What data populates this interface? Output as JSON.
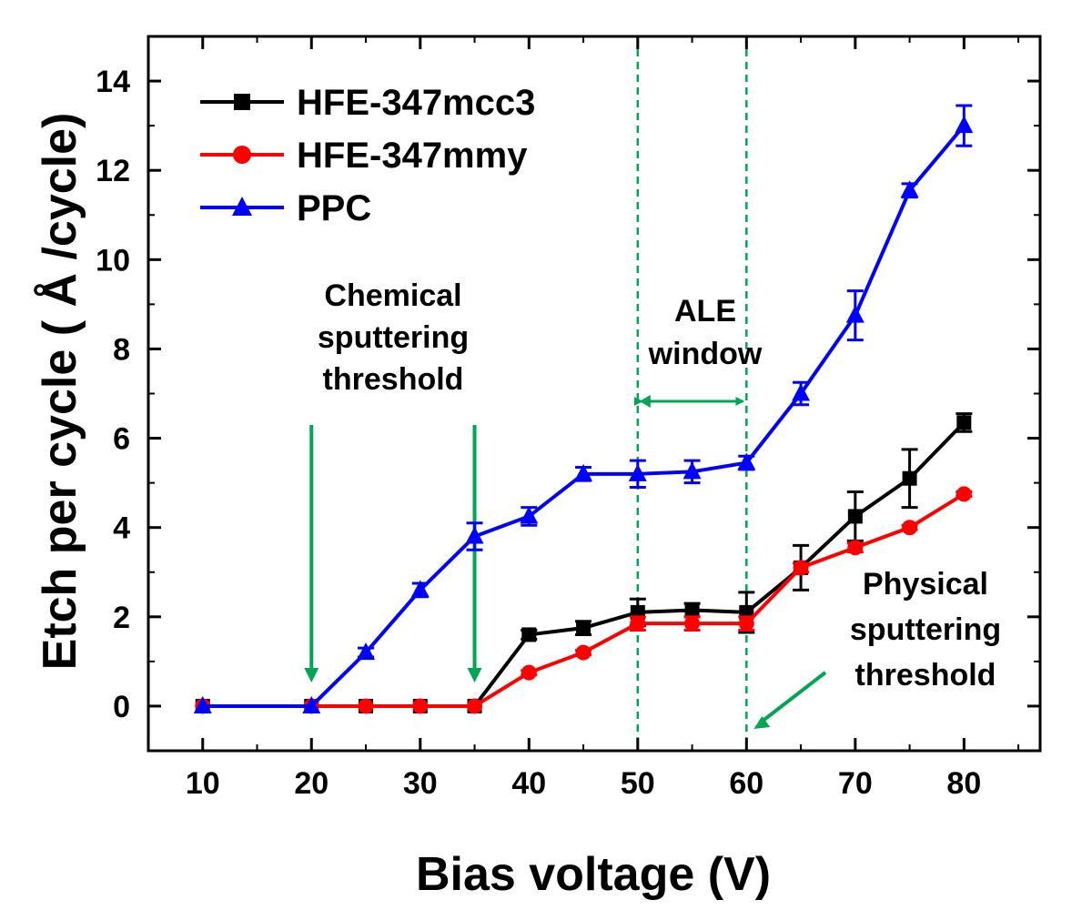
{
  "chart_data": {
    "type": "line",
    "title": "",
    "xlabel": "Bias voltage (V)",
    "ylabel": "Etch per cycle ( Å /cycle)",
    "xlim": [
      5,
      87
    ],
    "ylim": [
      -1,
      15
    ],
    "x_ticks": [
      10,
      20,
      30,
      40,
      50,
      60,
      70,
      80
    ],
    "y_ticks": [
      0,
      2,
      4,
      6,
      8,
      10,
      12,
      14
    ],
    "x_tick_labels": [
      "10",
      "20",
      "30",
      "40",
      "50",
      "60",
      "70",
      "80"
    ],
    "y_tick_labels": [
      "0",
      "2",
      "4",
      "6",
      "8",
      "10",
      "12",
      "14"
    ],
    "legend_position": "top-left",
    "series": [
      {
        "name": "HFE-347mcc3",
        "color": "#000000",
        "marker": "square",
        "x": [
          10,
          20,
          25,
          30,
          35,
          40,
          45,
          50,
          55,
          60,
          65,
          70,
          75,
          80
        ],
        "values": [
          0,
          0,
          0,
          0,
          0,
          1.6,
          1.75,
          2.1,
          2.15,
          2.1,
          3.1,
          4.25,
          5.1,
          6.35
        ],
        "errors": [
          0,
          0,
          0,
          0,
          0,
          0.1,
          0.15,
          0.3,
          0.15,
          0.45,
          0.5,
          0.55,
          0.65,
          0.2
        ]
      },
      {
        "name": "HFE-347mmy",
        "color": "#ff0000",
        "marker": "circle",
        "x": [
          10,
          20,
          25,
          30,
          35,
          40,
          45,
          50,
          55,
          60,
          65,
          70,
          75,
          80
        ],
        "values": [
          0,
          0,
          0,
          0,
          0,
          0.75,
          1.2,
          1.85,
          1.85,
          1.85,
          3.1,
          3.55,
          4.0,
          4.75
        ],
        "errors": [
          0,
          0,
          0,
          0,
          0,
          0.05,
          0.05,
          0.15,
          0.15,
          0.15,
          0.1,
          0.1,
          0.05,
          0.05
        ]
      },
      {
        "name": "PPC",
        "color": "#0000ff",
        "marker": "triangle",
        "x": [
          10,
          20,
          25,
          30,
          35,
          40,
          45,
          50,
          55,
          60,
          65,
          70,
          75,
          80
        ],
        "values": [
          0,
          0,
          1.2,
          2.6,
          3.8,
          4.25,
          5.2,
          5.2,
          5.25,
          5.45,
          7.0,
          8.75,
          11.55,
          13.0
        ],
        "errors": [
          0,
          0,
          0.1,
          0.15,
          0.3,
          0.2,
          0.15,
          0.3,
          0.25,
          0.15,
          0.25,
          0.55,
          0.15,
          0.45
        ]
      }
    ],
    "annotations": {
      "ale_window": {
        "lines": [
          "ALE",
          "window"
        ],
        "x_from": 50,
        "x_to": 60,
        "color": "#00a651"
      },
      "chemical": {
        "lines": [
          "Chemical",
          "sputtering",
          "threshold"
        ],
        "arrows_at_x": [
          20,
          35
        ],
        "color": "#00a651"
      },
      "physical": {
        "lines": [
          "Physical",
          "sputtering",
          "threshold"
        ],
        "arrow_to_x": 60,
        "color": "#00a651"
      }
    }
  }
}
